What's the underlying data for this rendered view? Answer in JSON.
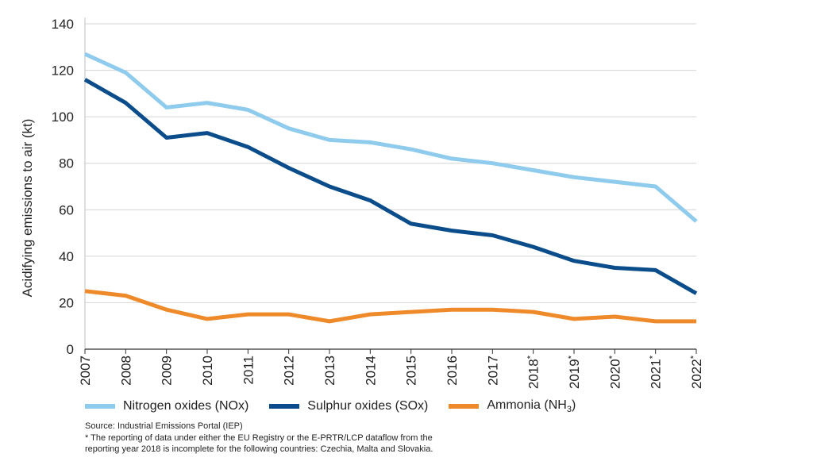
{
  "chart_data": {
    "type": "line",
    "ylabel": "Acidifying emissions to air (kt)",
    "ylim": [
      0,
      140
    ],
    "yticks": [
      0,
      20,
      40,
      60,
      80,
      100,
      120,
      140
    ],
    "categories": [
      "2007",
      "2008",
      "2009",
      "2010",
      "2011",
      "2012",
      "2013",
      "2014",
      "2015",
      "2016",
      "2017",
      "2018",
      "2019",
      "2020",
      "2021",
      "2022"
    ],
    "asterisk_from": "2018",
    "grid": "horizontal",
    "series": [
      {
        "name": "Nitrogen oxides (NOx)",
        "color": "#8ecbec",
        "values": [
          127,
          119,
          104,
          106,
          103,
          95,
          90,
          89,
          86,
          82,
          80,
          77,
          74,
          72,
          70,
          55
        ]
      },
      {
        "name": "Sulphur oxides (SOx)",
        "color": "#0b4d8a",
        "values": [
          116,
          106,
          91,
          93,
          87,
          78,
          70,
          64,
          54,
          51,
          49,
          44,
          38,
          35,
          34,
          24
        ]
      },
      {
        "name": "Ammonia (NH3)",
        "color": "#ee8a2a",
        "values": [
          25,
          23,
          17,
          13,
          15,
          15,
          12,
          15,
          16,
          17,
          17,
          16,
          13,
          14,
          12,
          12
        ]
      }
    ]
  },
  "legend": {
    "items": [
      {
        "label": "Nitrogen oxides (NOx)",
        "color": "#8ecbec"
      },
      {
        "label": "Sulphur oxides (SOx)",
        "color": "#0b4d8a"
      },
      {
        "label": "Ammonia (NH",
        "sub": "3",
        "close": ")",
        "color": "#ee8a2a"
      }
    ]
  },
  "notes": {
    "source": "Source: Industrial Emissions Portal (IEP)",
    "footnote_1": "* The reporting of data under either the EU Registry or the E-PRTR/LCP dataflow from the",
    "footnote_2": "reporting year 2018 is incomplete for the following countries: Czechia, Malta and Slovakia."
  }
}
